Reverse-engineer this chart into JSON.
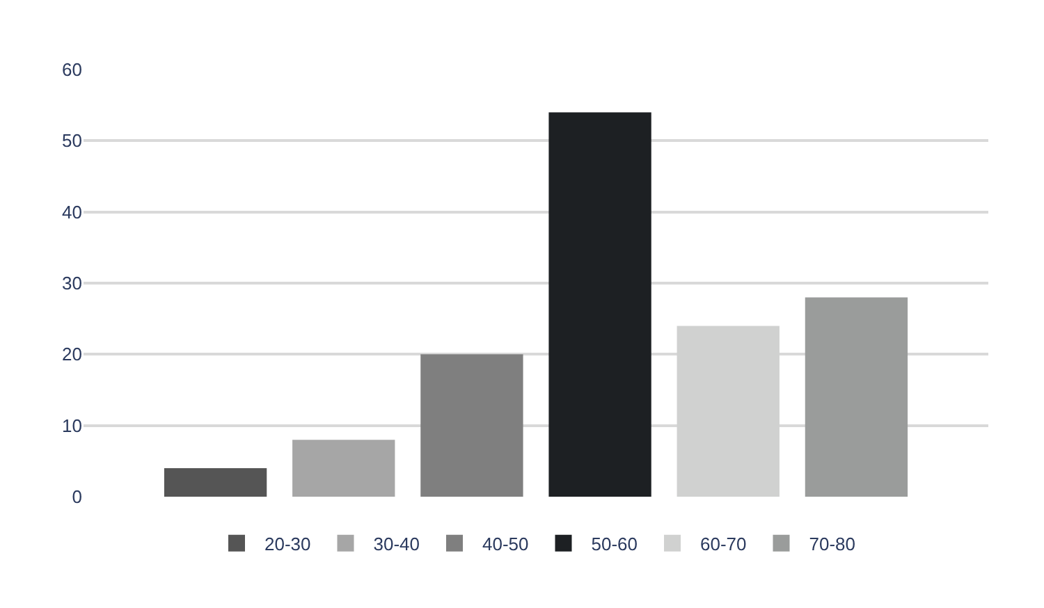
{
  "chart_data": {
    "type": "bar",
    "categories": [
      null
    ],
    "series": [
      {
        "name": "20-30",
        "color": "#555555",
        "values": [
          4
        ]
      },
      {
        "name": "30-40",
        "color": "#a6a6a6",
        "values": [
          8
        ]
      },
      {
        "name": "40-50",
        "color": "#7f7f7f",
        "values": [
          20
        ]
      },
      {
        "name": "50-60",
        "color": "#1d2023",
        "values": [
          54
        ]
      },
      {
        "name": "60-70",
        "color": "#d0d1d0",
        "values": [
          24
        ]
      },
      {
        "name": "70-80",
        "color": "#9a9c9b",
        "values": [
          28
        ]
      }
    ],
    "ylim": [
      0,
      60
    ],
    "yticks": [
      0,
      10,
      20,
      30,
      40,
      50,
      60
    ],
    "grid": "y",
    "legend": "bottom"
  }
}
